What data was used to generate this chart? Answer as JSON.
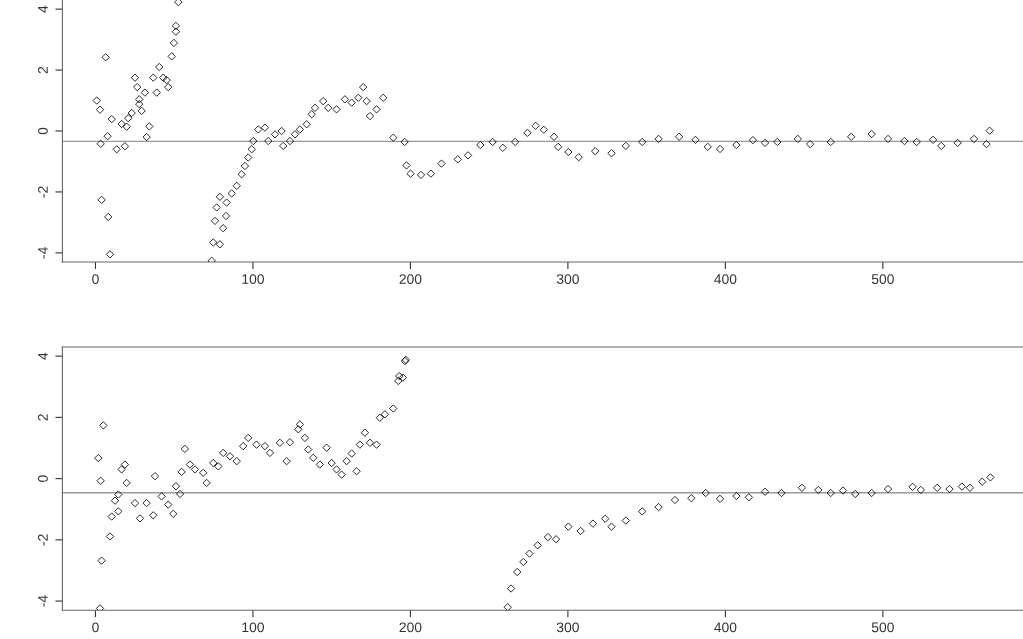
{
  "chart_data": [
    {
      "type": "scatter",
      "marker": "diamond",
      "grid": false,
      "xlim": [
        -21,
        589
      ],
      "ylim": [
        -4.3,
        4.3
      ],
      "xticks": [
        0,
        100,
        200,
        300,
        400,
        500
      ],
      "yticks": [
        -4,
        -2,
        0,
        2,
        4
      ],
      "ref_lines": [
        {
          "axis": "y",
          "value": -0.34,
          "color": "#999999"
        }
      ],
      "series": [
        {
          "color": "#000000",
          "x": [
            0.8,
            2.9,
            3.3,
            3.9,
            6.5,
            7.7,
            8.1,
            9.2,
            10.3,
            13.5,
            16.6,
            18.7,
            19.8,
            20.8,
            23,
            25.1,
            26.5,
            27.8,
            27.8,
            29.3,
            31.4,
            32.5,
            34.2,
            36.7,
            38.9,
            40.5,
            43,
            45.2,
            46.2,
            48.4,
            49.8,
            51.1,
            51.1,
            52.6,
            73.8,
            74.8,
            75.9,
            77,
            79,
            79,
            81.1,
            82.9,
            83.3,
            86.5,
            89.7,
            92.8,
            94.9,
            97,
            99.2,
            100.2,
            103.4,
            107.6,
            109.7,
            114,
            118.2,
            119.2,
            123.5,
            126.7,
            129.8,
            134.1,
            137.3,
            139.4,
            144.6,
            147.8,
            153.1,
            158.4,
            162.7,
            166.9,
            170,
            172.2,
            174.3,
            178.5,
            182.7,
            189.1,
            196.3,
            197.5,
            200.1,
            206.7,
            213,
            219.7,
            230.1,
            236.6,
            244.4,
            252.2,
            258.7,
            266.5,
            274.3,
            279.5,
            284.7,
            291.2,
            293.8,
            300.3,
            306.9,
            317.3,
            327.7,
            336.8,
            347.2,
            357.6,
            370.6,
            381,
            388.8,
            396.6,
            407,
            417.5,
            425.2,
            433,
            446,
            453.8,
            466.9,
            479.9,
            492.9,
            503.3,
            513.7,
            521.5,
            531.9,
            537.1,
            547.5,
            557.9,
            565.8,
            567.8
          ],
          "values": [
            1.0,
            0.7,
            -0.42,
            -2.26,
            2.42,
            -0.17,
            -2.82,
            -4.05,
            0.39,
            -0.6,
            0.23,
            -0.5,
            0.14,
            0.42,
            0.59,
            1.75,
            1.44,
            1.04,
            0.88,
            0.66,
            1.26,
            -0.2,
            0.15,
            1.75,
            1.26,
            2.1,
            1.75,
            1.67,
            1.44,
            2.45,
            2.89,
            3.26,
            3.45,
            4.23,
            -4.26,
            -3.66,
            -2.95,
            -2.51,
            -3.72,
            -2.16,
            -3.19,
            -2.79,
            -2.35,
            -2.05,
            -1.8,
            -1.42,
            -1.15,
            -0.87,
            -0.6,
            -0.33,
            0.05,
            0.11,
            -0.33,
            -0.11,
            0,
            -0.49,
            -0.33,
            -0.11,
            0.05,
            0.22,
            0.55,
            0.76,
            0.98,
            0.76,
            0.71,
            1.04,
            0.93,
            1.09,
            1.44,
            0.98,
            0.49,
            0.71,
            1.09,
            -0.22,
            -0.36,
            -1.13,
            -1.4,
            -1.44,
            -1.4,
            -1.07,
            -0.93,
            -0.8,
            -0.46,
            -0.36,
            -0.55,
            -0.36,
            -0.06,
            0.17,
            0.04,
            -0.19,
            -0.52,
            -0.69,
            -0.86,
            -0.66,
            -0.73,
            -0.49,
            -0.36,
            -0.26,
            -0.19,
            -0.29,
            -0.52,
            -0.59,
            -0.46,
            -0.3,
            -0.39,
            -0.36,
            -0.26,
            -0.43,
            -0.36,
            -0.19,
            -0.1,
            -0.26,
            -0.33,
            -0.36,
            -0.29,
            -0.49,
            -0.39,
            -0.26,
            -0.43,
            0.01
          ]
        }
      ]
    },
    {
      "type": "scatter",
      "marker": "diamond",
      "grid": false,
      "xlim": [
        -21,
        589
      ],
      "ylim": [
        -4.3,
        4.3
      ],
      "xticks": [
        0,
        100,
        200,
        300,
        400,
        500
      ],
      "yticks": [
        -4,
        -2,
        0,
        2,
        4
      ],
      "ref_lines": [
        {
          "axis": "y",
          "value": -0.46,
          "color": "#999999"
        }
      ],
      "series": [
        {
          "color": "#000000",
          "x": [
            1.8,
            2.9,
            3.3,
            3.9,
            5,
            9.2,
            10.3,
            12.4,
            14.5,
            14.5,
            16.6,
            18.7,
            19.8,
            25.1,
            28.3,
            32.5,
            36.7,
            37.8,
            42,
            46.2,
            49.4,
            51.1,
            53.7,
            54.7,
            56.8,
            60,
            63.2,
            68.4,
            70.6,
            74.8,
            78,
            81.1,
            85.4,
            89.7,
            93.8,
            97,
            102.3,
            107.6,
            110.8,
            117.1,
            121.4,
            123.5,
            128.8,
            129.8,
            133,
            135.1,
            138.3,
            142.5,
            146.8,
            150,
            153.1,
            156.3,
            159.5,
            162.7,
            165.8,
            167.9,
            171.1,
            174.3,
            178.5,
            180.6,
            183.8,
            189.1,
            192.3,
            192.9,
            195.2,
            196.5,
            197.1,
            261.8,
            263.9,
            267.8,
            271.7,
            275.6,
            280.8,
            287.3,
            292.5,
            300.3,
            308.1,
            315.9,
            323.7,
            327.7,
            336.8,
            347.2,
            357.6,
            368,
            378.4,
            387.5,
            396.6,
            407,
            414.9,
            425.2,
            435.6,
            448.6,
            459,
            466.9,
            474.7,
            482.5,
            492.9,
            503.3,
            518.9,
            524.1,
            534.5,
            542.3,
            550.2,
            555.3,
            563.1,
            568.3
          ],
          "values": [
            0.67,
            -4.24,
            -0.07,
            -2.68,
            1.74,
            -1.89,
            -1.24,
            -0.72,
            -0.52,
            -1.07,
            0.3,
            0.46,
            -0.14,
            -0.8,
            -1.3,
            -0.8,
            -1.2,
            0.08,
            -0.58,
            -0.85,
            -1.15,
            -0.25,
            -0.5,
            0.22,
            0.97,
            0.46,
            0.3,
            0.19,
            -0.14,
            0.51,
            0.4,
            0.84,
            0.73,
            0.57,
            1.06,
            1.33,
            1.11,
            1.06,
            0.84,
            1.17,
            0.57,
            1.19,
            1.61,
            1.77,
            1.33,
            0.95,
            0.68,
            0.46,
            1.01,
            0.51,
            0.3,
            0.13,
            0.57,
            0.82,
            0.24,
            1.11,
            1.5,
            1.17,
            1.11,
            1.99,
            2.1,
            2.29,
            3.19,
            3.35,
            3.3,
            3.84,
            3.88,
            -4.2,
            -3.59,
            -3.05,
            -2.72,
            -2.45,
            -2.18,
            -1.91,
            -1.98,
            -1.57,
            -1.71,
            -1.47,
            -1.31,
            -1.57,
            -1.37,
            -1.07,
            -0.93,
            -0.7,
            -0.64,
            -0.47,
            -0.66,
            -0.57,
            -0.61,
            -0.43,
            -0.47,
            -0.3,
            -0.37,
            -0.47,
            -0.39,
            -0.5,
            -0.47,
            -0.34,
            -0.27,
            -0.37,
            -0.3,
            -0.34,
            -0.26,
            -0.3,
            -0.1,
            0.04
          ]
        }
      ]
    }
  ]
}
